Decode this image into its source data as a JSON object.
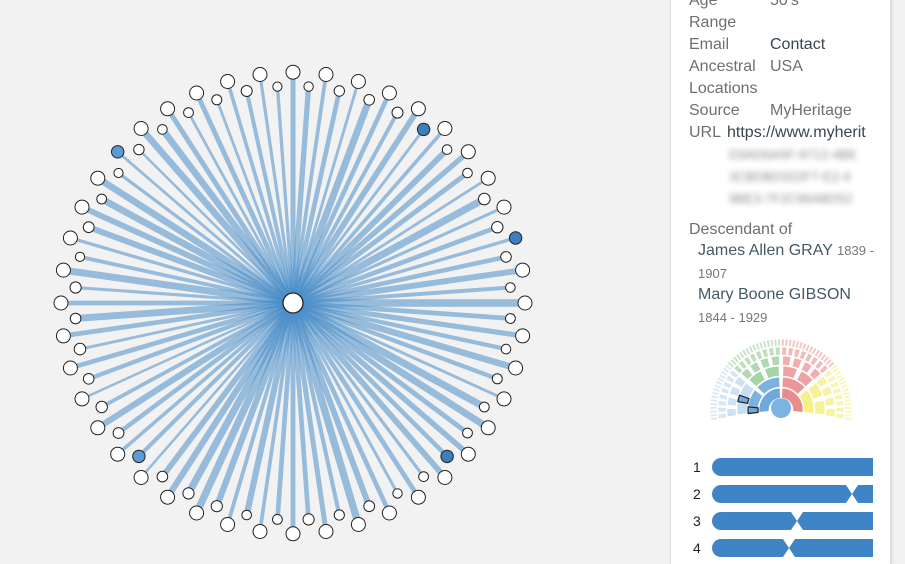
{
  "panel": {
    "age_range_label": "Age Range",
    "age_range_value": "50's",
    "email_label": "Email",
    "email_value": "Contact",
    "locations_label": "Ancestral Locations",
    "locations_value": "USA",
    "source_label": "Source",
    "source_value": "MyHeritage",
    "url_label": "URL",
    "url_value": "https://www.myherit",
    "url_blurred": [
      "D3AD6A5F-9712-4BE",
      "3CBDBD322F7-E2-4",
      "9BE3-7F2C96ABD52"
    ],
    "descendant_label": "Descendant of",
    "ancestors": [
      {
        "name": "James Allen GRAY",
        "dates": "1839 - 1907"
      },
      {
        "name": "Mary Boone GIBSON",
        "dates": "1844 - 1929"
      }
    ],
    "chromosome_rows": [
      "1",
      "2",
      "3",
      "4"
    ]
  },
  "colors": {
    "edge": "#4a8ec9",
    "node_highlight": "#3e7fbf",
    "node_highlight_light": "#5b9bd5",
    "node_default": "#ffffff",
    "bar": "#3f85c6",
    "fan_palette": [
      "#6fa8dc",
      "#8fc98f",
      "#e98c8c",
      "#f2ef7a",
      "#b9d5ee"
    ]
  },
  "network": {
    "node_count": 88,
    "highlighted_nodes": [
      9,
      18,
      33,
      55,
      76
    ]
  }
}
